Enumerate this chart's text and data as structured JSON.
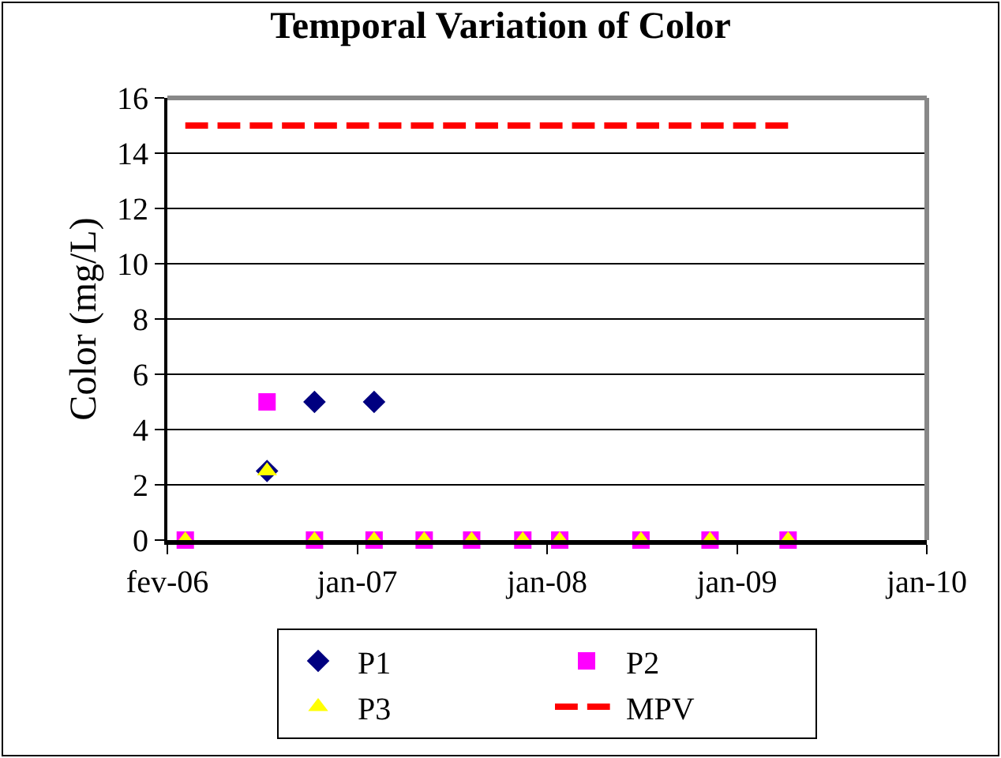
{
  "chart_data": {
    "type": "scatter",
    "title": "Temporal Variation of Color",
    "ylabel": "Color (mg/L)",
    "x": [
      "2006-03-07",
      "2006-08-09",
      "2006-11-07",
      "2007-02-28",
      "2007-06-03",
      "2007-09-01",
      "2007-12-07",
      "2008-02-15",
      "2008-07-18",
      "2008-11-26",
      "2009-04-23"
    ],
    "series": [
      {
        "name": "P1",
        "color": "#000080",
        "marker": "diamond",
        "values": [
          null,
          2.5,
          5,
          5,
          null,
          null,
          null,
          null,
          null,
          null,
          null
        ]
      },
      {
        "name": "P2",
        "color": "#ff00ff",
        "marker": "square",
        "values": [
          0,
          5,
          0,
          0,
          0,
          0,
          0,
          0,
          0,
          0,
          0
        ]
      },
      {
        "name": "P3",
        "color": "#ffff00",
        "marker": "triangle",
        "values": [
          0,
          2.5,
          0,
          0,
          0,
          0,
          0,
          0,
          0,
          0,
          0
        ]
      },
      {
        "name": "MPV",
        "type": "line",
        "color": "#ff0000",
        "line_style": "dashed",
        "x": [
          "2006-03-07",
          "2009-04-23"
        ],
        "values": [
          15,
          15
        ]
      }
    ],
    "xlim": [
      "2006-02-01",
      "2010-01-11"
    ],
    "xticks": [
      {
        "value": "2006-02-01",
        "label": "fev-06"
      },
      {
        "value": "2007-01-27",
        "label": "jan-07"
      },
      {
        "value": "2008-01-22",
        "label": "jan-08"
      },
      {
        "value": "2009-01-16",
        "label": "jan-09"
      },
      {
        "value": "2010-01-11",
        "label": "jan-10"
      }
    ],
    "ylim": [
      0,
      16
    ],
    "yticks": [
      0,
      2,
      4,
      6,
      8,
      10,
      12,
      14,
      16
    ],
    "grid": "y",
    "legend": "bottom"
  }
}
